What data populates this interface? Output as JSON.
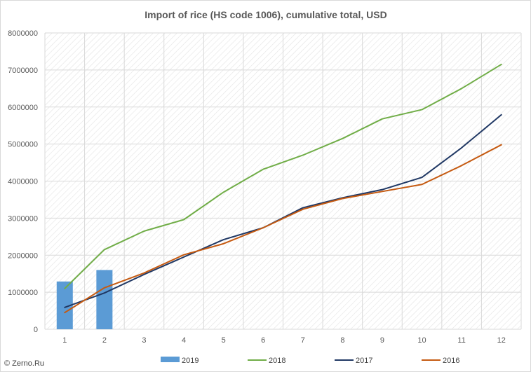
{
  "chart_data": {
    "type": "line",
    "title": "Import of rice (HS code 1006), cumulative total, USD",
    "xlabel": "",
    "ylabel": "",
    "x": [
      1,
      2,
      3,
      4,
      5,
      6,
      7,
      8,
      9,
      10,
      11,
      12
    ],
    "ylim": [
      0,
      8000000
    ],
    "yticks": [
      0,
      1000000,
      2000000,
      3000000,
      4000000,
      5000000,
      6000000,
      7000000,
      8000000
    ],
    "grid": true,
    "legend_position": "bottom",
    "series": [
      {
        "name": "2019",
        "type": "bar",
        "color": "#5b9bd5",
        "values": [
          1290000,
          1600000,
          null,
          null,
          null,
          null,
          null,
          null,
          null,
          null,
          null,
          null
        ]
      },
      {
        "name": "2018",
        "type": "line",
        "color": "#70ad47",
        "values": [
          1100000,
          2150000,
          2650000,
          2960000,
          3700000,
          4320000,
          4700000,
          5150000,
          5680000,
          5930000,
          6500000,
          7150000
        ]
      },
      {
        "name": "2017",
        "type": "line",
        "color": "#203864",
        "values": [
          590000,
          980000,
          1480000,
          1950000,
          2420000,
          2740000,
          3280000,
          3550000,
          3770000,
          4100000,
          4900000,
          5790000
        ]
      },
      {
        "name": "2016",
        "type": "line",
        "color": "#c55a11",
        "values": [
          450000,
          1120000,
          1520000,
          2010000,
          2310000,
          2740000,
          3240000,
          3530000,
          3720000,
          3910000,
          4420000,
          4980000
        ]
      }
    ]
  },
  "watermark": "© Zerno.Ru"
}
